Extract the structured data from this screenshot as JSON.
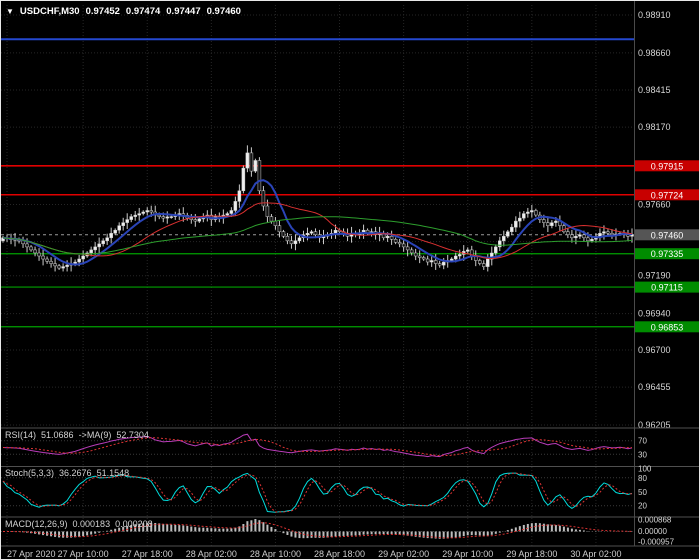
{
  "header": {
    "symbol": "USDCHF,M30",
    "open": "0.97452",
    "high": "0.97474",
    "low": "0.97447",
    "close": "0.97460"
  },
  "colors": {
    "background": "#000000",
    "grid": "#262626",
    "resistance": "#e00000",
    "resistance_badge": "#c80000",
    "support": "#00a000",
    "support_badge": "#008c00",
    "other_level": "#2448d0",
    "current": "#9a9a9a",
    "current_badge": "#555555",
    "candle_up": "#efefef",
    "candle_down": "#141414",
    "candle_border": "#cccccc",
    "ma_fast": "#2a44b8",
    "ma_mid": "#d93030",
    "ma_slow": "#2d9e2d",
    "rsi": "#b93cb9",
    "rsi_ma": "#dd3333",
    "stoch_k": "#00dcdc",
    "stoch_d": "#dd3333",
    "macd_hist": "#bdbdbd",
    "macd_signal": "#dd3333"
  },
  "indicators": {
    "rsi": {
      "label": "RSI(14)",
      "value": "51.0686",
      "ma_label": "->MA(9)",
      "ma_value": "52.7304",
      "levels": [
        "70",
        "30"
      ]
    },
    "stoch": {
      "label": "Stoch(5,3,3)",
      "value": "36.2676",
      "ma_value": "51.1548",
      "levels": [
        "100",
        "80",
        "50",
        "20"
      ]
    },
    "macd": {
      "label": "MACD(12,26,9)",
      "value": "0.000183",
      "ma_value": "0.000208",
      "axis": [
        "0.000868",
        "0.00000",
        "-0.000957"
      ]
    }
  },
  "chart_data": {
    "type": "candlestick",
    "symbol": "USDCHF",
    "timeframe": "M30",
    "title": "USDCHF,M30 0.97452 0.97474 0.97447 0.97460",
    "ohlc_current": {
      "open": 0.97452,
      "high": 0.97474,
      "low": 0.97447,
      "close": 0.9746
    },
    "current_price": 0.9746,
    "y_visible_range": [
      0.96205,
      0.9891
    ],
    "y_axis_ticks": [
      "0.98910",
      "0.98660",
      "0.98415",
      "0.98170",
      "0.97660",
      "0.97190",
      "0.96940",
      "0.96700",
      "0.96455",
      "0.96205"
    ],
    "y_grid_prices": [
      0.9891,
      0.9866,
      0.98415,
      0.9817,
      0.97915,
      0.9766,
      0.97415,
      0.9719,
      0.9694,
      0.967,
      0.96455,
      0.96205
    ],
    "resistance_levels": [
      0.97915,
      0.97724
    ],
    "support_levels": [
      0.97335,
      0.97115,
      0.96853
    ],
    "other_levels": [
      0.9875
    ],
    "x_tick_labels": [
      "27 Apr 2020",
      "27 Apr 10:00",
      "27 Apr 18:00",
      "28 Apr 02:00",
      "28 Apr 10:00",
      "28 Apr 18:00",
      "29 Apr 02:00",
      "29 Apr 10:00",
      "29 Apr 18:00",
      "30 Apr 02:00"
    ],
    "x_tick_candle_index": [
      1,
      20,
      36,
      52,
      68,
      84,
      100,
      116,
      132,
      148
    ],
    "moving_averages": [
      {
        "name": "ma-fast-blue",
        "period": 8,
        "color": "#2a44b8",
        "width": 2
      },
      {
        "name": "ma-mid-red",
        "period": 21,
        "color": "#d93030",
        "width": 1
      },
      {
        "name": "ma-slow-green",
        "period": 55,
        "color": "#2d9e2d",
        "width": 1
      }
    ],
    "closes": [
      0.9744,
      0.97435,
      0.9743,
      0.97425,
      0.9742,
      0.974,
      0.9738,
      0.9736,
      0.9734,
      0.9732,
      0.973,
      0.97285,
      0.9727,
      0.97255,
      0.9724,
      0.9725,
      0.9726,
      0.9727,
      0.9728,
      0.973,
      0.9732,
      0.9734,
      0.9736,
      0.9738,
      0.974,
      0.9742,
      0.9744,
      0.9747,
      0.9749,
      0.9752,
      0.9754,
      0.9756,
      0.9758,
      0.9759,
      0.976,
      0.9761,
      0.9762,
      0.9761,
      0.9759,
      0.9758,
      0.9757,
      0.97578,
      0.9758,
      0.9759,
      0.976,
      0.97588,
      0.9757,
      0.9756,
      0.9755,
      0.97565,
      0.9758,
      0.9759,
      0.9756,
      0.9758,
      0.9757,
      0.9759,
      0.976,
      0.9762,
      0.9768,
      0.9775,
      0.979,
      0.98,
      0.9788,
      0.9795,
      0.9775,
      0.9765,
      0.9758,
      0.9755,
      0.9752,
      0.9748,
      0.9745,
      0.9742,
      0.974,
      0.9742,
      0.9744,
      0.9746,
      0.9747,
      0.9748,
      0.9746,
      0.9744,
      0.9745,
      0.9746,
      0.9747,
      0.9749,
      0.9748,
      0.9747,
      0.9745,
      0.9747,
      0.9746,
      0.9747,
      0.9749,
      0.9747,
      0.9748,
      0.9746,
      0.9747,
      0.9744,
      0.9745,
      0.9743,
      0.9741,
      0.974,
      0.9738,
      0.9736,
      0.9734,
      0.9732,
      0.9731,
      0.973,
      0.9728,
      0.9729,
      0.9727,
      0.9726,
      0.9728,
      0.9729,
      0.973,
      0.9732,
      0.9733,
      0.9735,
      0.9736,
      0.9732,
      0.9729,
      0.9727,
      0.9725,
      0.973,
      0.9734,
      0.9738,
      0.9742,
      0.9745,
      0.9748,
      0.9751,
      0.9755,
      0.9757,
      0.976,
      0.9761,
      0.9762,
      0.9759,
      0.9756,
      0.9754,
      0.9752,
      0.9754,
      0.9755,
      0.9752,
      0.9748,
      0.9746,
      0.9744,
      0.9745,
      0.9746,
      0.9744,
      0.9742,
      0.9743,
      0.9745,
      0.9747,
      0.9748,
      0.9747,
      0.9746,
      0.97465,
      0.9747,
      0.9746,
      0.9745,
      0.9746
    ],
    "subcharts": [
      {
        "type": "rsi",
        "params": "RSI(14)",
        "value": 51.0686,
        "ma": "MA(9)",
        "ma_value": 52.7304,
        "levels": [
          70,
          30
        ]
      },
      {
        "type": "stochastic",
        "params": "Stoch(5,3,3)",
        "k": 36.2676,
        "d": 51.1548,
        "levels": [
          100,
          80,
          50,
          20
        ]
      },
      {
        "type": "macd",
        "params": "MACD(12,26,9)",
        "value": 0.000183,
        "signal": 0.000208,
        "axis_ticks": [
          0.000868,
          0.0,
          -0.000957
        ]
      }
    ]
  }
}
